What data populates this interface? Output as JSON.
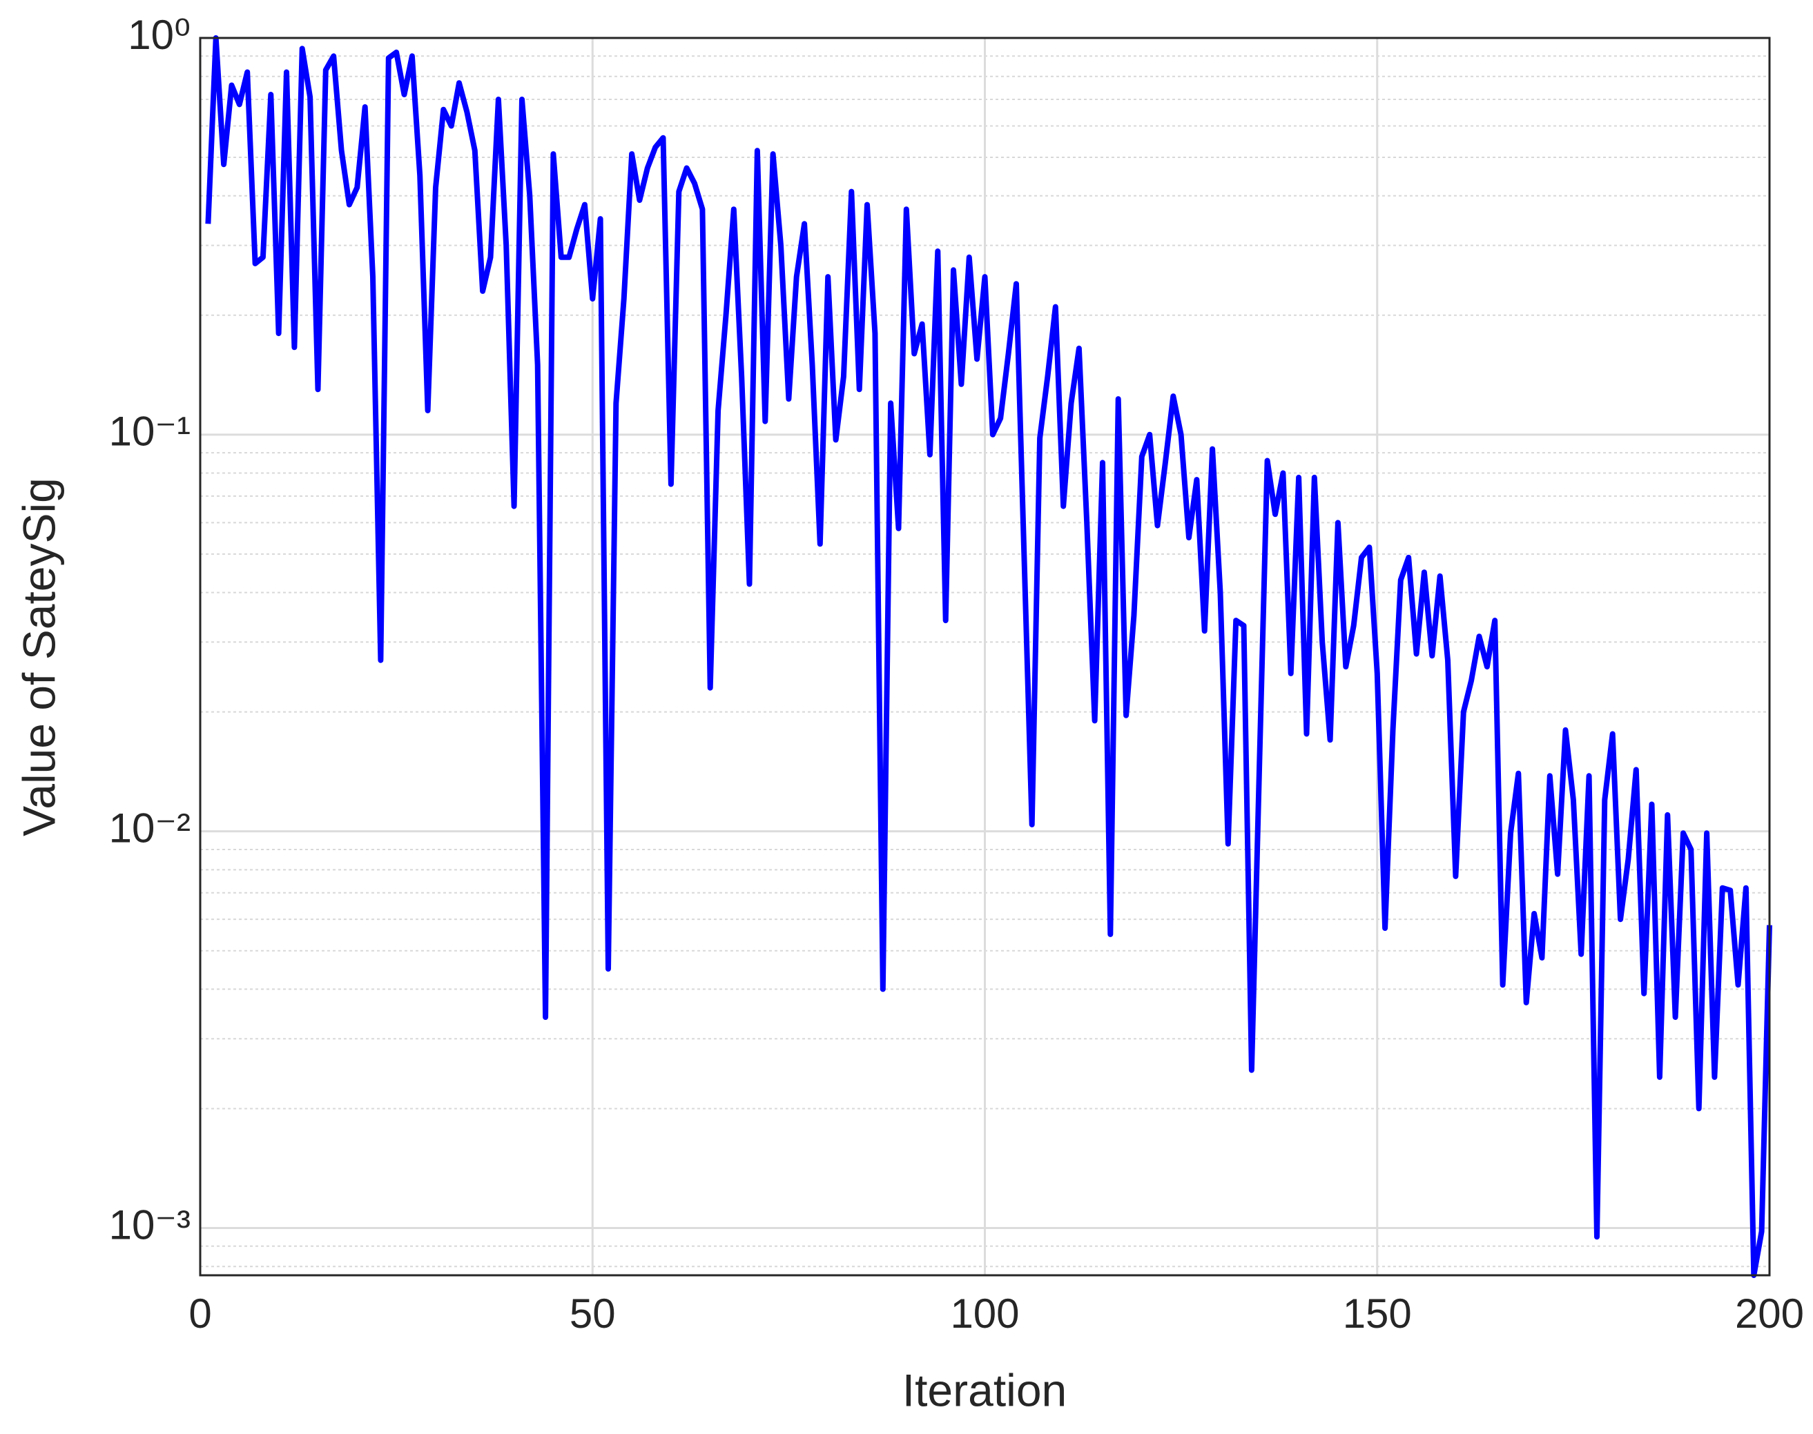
{
  "chart_data": {
    "type": "line",
    "xlabel": "Iteration",
    "ylabel": "Value of SateySig",
    "x": [
      1,
      2,
      3,
      4,
      5,
      6,
      7,
      8,
      9,
      10,
      11,
      12,
      13,
      14,
      15,
      16,
      17,
      18,
      19,
      20,
      21,
      22,
      23,
      24,
      25,
      26,
      27,
      28,
      29,
      30,
      31,
      32,
      33,
      34,
      35,
      36,
      37,
      38,
      39,
      40,
      41,
      42,
      43,
      44,
      45,
      46,
      47,
      48,
      49,
      50,
      51,
      52,
      53,
      54,
      55,
      56,
      57,
      58,
      59,
      60,
      61,
      62,
      63,
      64,
      65,
      66,
      67,
      68,
      69,
      70,
      71,
      72,
      73,
      74,
      75,
      76,
      77,
      78,
      79,
      80,
      81,
      82,
      83,
      84,
      85,
      86,
      87,
      88,
      89,
      90,
      91,
      92,
      93,
      94,
      95,
      96,
      97,
      98,
      99,
      100,
      101,
      102,
      103,
      104,
      105,
      106,
      107,
      108,
      109,
      110,
      111,
      112,
      113,
      114,
      115,
      116,
      117,
      118,
      119,
      120,
      121,
      122,
      123,
      124,
      125,
      126,
      127,
      128,
      129,
      130,
      131,
      132,
      133,
      134,
      135,
      136,
      137,
      138,
      139,
      140,
      141,
      142,
      143,
      144,
      145,
      146,
      147,
      148,
      149,
      150,
      151,
      152,
      153,
      154,
      155,
      156,
      157,
      158,
      159,
      160,
      161,
      162,
      163,
      164,
      165,
      166,
      167,
      168,
      169,
      170,
      171,
      172,
      173,
      174,
      175,
      176,
      177,
      178,
      179,
      180,
      181,
      182,
      183,
      184,
      185,
      186,
      187,
      188,
      189,
      190,
      191,
      192,
      193,
      194,
      195,
      196,
      197,
      198,
      199,
      200
    ],
    "series": [
      {
        "name": "SateySig",
        "color": "#0000ff",
        "values": [
          0.34,
          1.0,
          0.48,
          0.76,
          0.68,
          0.82,
          0.27,
          0.28,
          0.72,
          0.18,
          0.82,
          0.166,
          0.94,
          0.71,
          0.13,
          0.83,
          0.9,
          0.52,
          0.38,
          0.42,
          0.67,
          0.25,
          0.027,
          0.89,
          0.92,
          0.72,
          0.9,
          0.45,
          0.115,
          0.42,
          0.66,
          0.6,
          0.77,
          0.65,
          0.52,
          0.23,
          0.28,
          0.7,
          0.3,
          0.066,
          0.7,
          0.4,
          0.15,
          0.0034,
          0.51,
          0.28,
          0.28,
          0.33,
          0.38,
          0.22,
          0.35,
          0.0045,
          0.12,
          0.22,
          0.51,
          0.39,
          0.47,
          0.53,
          0.56,
          0.075,
          0.41,
          0.47,
          0.43,
          0.37,
          0.023,
          0.115,
          0.2,
          0.37,
          0.14,
          0.042,
          0.52,
          0.108,
          0.51,
          0.3,
          0.123,
          0.25,
          0.34,
          0.15,
          0.053,
          0.25,
          0.097,
          0.14,
          0.41,
          0.13,
          0.38,
          0.18,
          0.004,
          0.12,
          0.058,
          0.37,
          0.16,
          0.19,
          0.089,
          0.29,
          0.034,
          0.26,
          0.134,
          0.28,
          0.155,
          0.25,
          0.1,
          0.11,
          0.16,
          0.24,
          0.05,
          0.0104,
          0.098,
          0.14,
          0.21,
          0.066,
          0.12,
          0.165,
          0.06,
          0.019,
          0.085,
          0.0055,
          0.123,
          0.0196,
          0.035,
          0.088,
          0.1,
          0.059,
          0.085,
          0.125,
          0.1,
          0.055,
          0.077,
          0.032,
          0.092,
          0.04,
          0.0093,
          0.034,
          0.033,
          0.0025,
          0.015,
          0.086,
          0.063,
          0.08,
          0.025,
          0.078,
          0.0176,
          0.078,
          0.03,
          0.017,
          0.06,
          0.026,
          0.033,
          0.049,
          0.052,
          0.025,
          0.0057,
          0.018,
          0.043,
          0.049,
          0.028,
          0.045,
          0.0277,
          0.044,
          0.027,
          0.0077,
          0.02,
          0.024,
          0.031,
          0.026,
          0.034,
          0.0041,
          0.0099,
          0.014,
          0.0037,
          0.0062,
          0.0048,
          0.0138,
          0.0078,
          0.018,
          0.012,
          0.0049,
          0.0138,
          0.00095,
          0.012,
          0.0176,
          0.006,
          0.0085,
          0.0143,
          0.0039,
          0.0117,
          0.0024,
          0.011,
          0.0034,
          0.0099,
          0.009,
          0.002,
          0.0099,
          0.0024,
          0.0072,
          0.0071,
          0.0041,
          0.0072,
          0.00076,
          0.00098,
          0.0058
        ]
      }
    ],
    "xlim": [
      0,
      200
    ],
    "xticks": [
      0,
      50,
      100,
      150,
      200
    ],
    "ylim": [
      0.00076,
      1
    ],
    "ylog": true,
    "yticks": [
      {
        "value": 0.001,
        "label": "10⁻³"
      },
      {
        "value": 0.01,
        "label": "10⁻²"
      },
      {
        "value": 0.1,
        "label": "10⁻¹"
      },
      {
        "value": 1,
        "label": "10⁰"
      }
    ],
    "grid": true,
    "minor_grid": true
  }
}
